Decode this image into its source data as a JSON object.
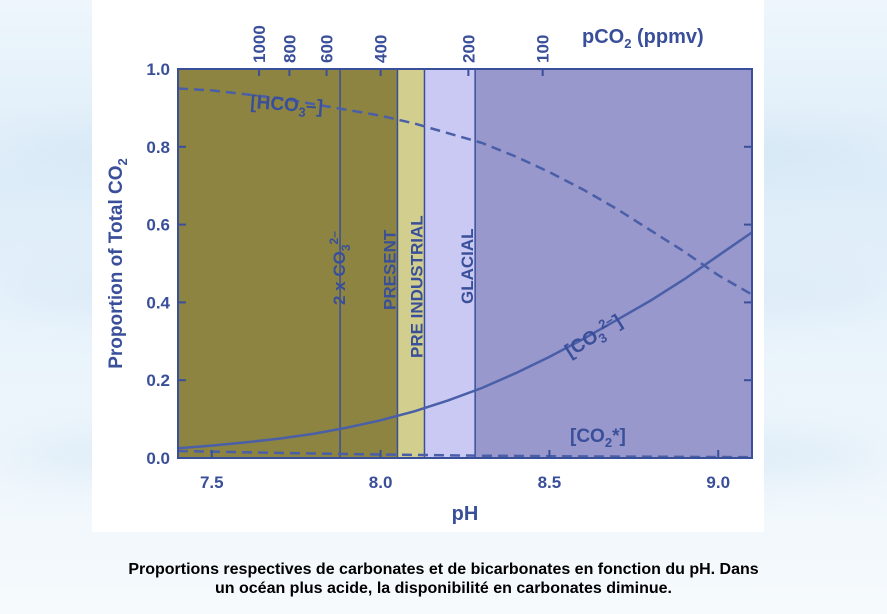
{
  "caption": {
    "line1": "Proportions respectives de carbonates et de bicarbonates en fonction du pH. Dans",
    "line2": "un océan plus acide, la disponibilité en carbonates diminue."
  },
  "colors": {
    "axis": "#3a4f9a",
    "region_present": "#8c8440",
    "region_preindustrial": "#d2cf8e",
    "region_glacial_light": "#c9c9f3",
    "region_glacial": "#9898cc",
    "curve": "#4a5fa8"
  },
  "chart_data": {
    "type": "line",
    "xlabel": "pH",
    "ylabel": "Proportion of Total CO2",
    "xlim": [
      7.4,
      9.1
    ],
    "ylim": [
      0.0,
      1.0
    ],
    "x_ticks": [
      "7.5",
      "8.0",
      "8.5",
      "9.0"
    ],
    "y_ticks": [
      "0.0",
      "0.2",
      "0.4",
      "0.6",
      "0.8",
      "1.0"
    ],
    "top_axis": {
      "label": "pCO2 (ppmv)",
      "ticks": [
        {
          "label": "1000",
          "ph": 7.64
        },
        {
          "label": "800",
          "ph": 7.73
        },
        {
          "label": "600",
          "ph": 7.84
        },
        {
          "label": "400",
          "ph": 8.0
        },
        {
          "label": "200",
          "ph": 8.26
        },
        {
          "label": "100",
          "ph": 8.48
        }
      ]
    },
    "series": [
      {
        "name": "[HCO3-]",
        "style": "dashed",
        "x": [
          7.4,
          7.5,
          7.6,
          7.7,
          7.8,
          7.9,
          8.0,
          8.1,
          8.2,
          8.3,
          8.4,
          8.5,
          8.6,
          8.7,
          8.8,
          8.9,
          9.0,
          9.1
        ],
        "y": [
          0.95,
          0.945,
          0.935,
          0.925,
          0.91,
          0.895,
          0.88,
          0.86,
          0.835,
          0.81,
          0.775,
          0.735,
          0.69,
          0.64,
          0.585,
          0.53,
          0.47,
          0.42
        ]
      },
      {
        "name": "[CO3 2-]",
        "style": "solid",
        "x": [
          7.4,
          7.5,
          7.6,
          7.7,
          7.8,
          7.9,
          8.0,
          8.1,
          8.2,
          8.3,
          8.4,
          8.5,
          8.6,
          8.7,
          8.8,
          8.9,
          9.0,
          9.1
        ],
        "y": [
          0.025,
          0.032,
          0.04,
          0.05,
          0.062,
          0.078,
          0.097,
          0.12,
          0.148,
          0.18,
          0.218,
          0.26,
          0.306,
          0.355,
          0.405,
          0.46,
          0.52,
          0.58
        ]
      },
      {
        "name": "[CO2*]",
        "style": "dashed",
        "x": [
          7.4,
          7.7,
          8.0,
          8.3,
          8.6,
          9.1
        ],
        "y": [
          0.018,
          0.013,
          0.009,
          0.006,
          0.004,
          0.002
        ]
      }
    ],
    "regions": [
      {
        "label": "",
        "x_start": 7.4,
        "x_end": 8.05,
        "color": "#8c8440"
      },
      {
        "label": "",
        "x_start": 8.05,
        "x_end": 8.13,
        "color": "#d2cf8e"
      },
      {
        "label": "",
        "x_start": 8.13,
        "x_end": 8.28,
        "color": "#c9c9f3"
      },
      {
        "label": "",
        "x_start": 8.28,
        "x_end": 9.1,
        "color": "#9898cc"
      }
    ],
    "vertical_markers": [
      {
        "label": "2 x CO3 2-",
        "x": 7.88
      },
      {
        "label": "PRESENT",
        "x": 8.05
      },
      {
        "label": "PRE INDUSTRIAL",
        "x": 8.13
      },
      {
        "label": "GLACIAL",
        "x": 8.28
      }
    ],
    "annotations": {
      "hco3": "[HCO3-]",
      "co3": "[CO3 2-]",
      "co2": "[CO2*]"
    }
  }
}
